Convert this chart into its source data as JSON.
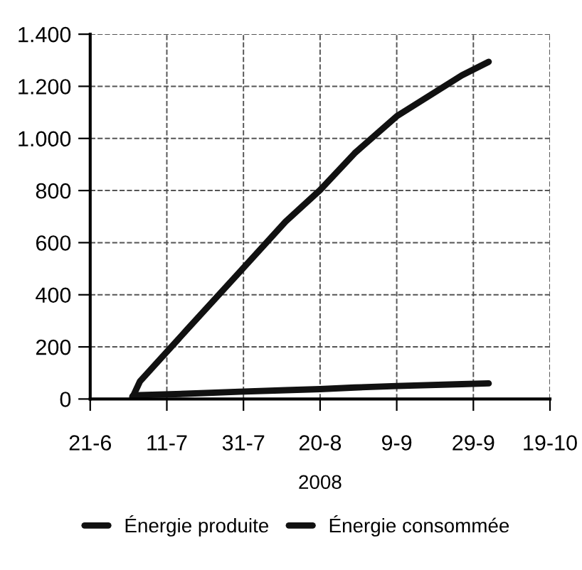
{
  "chart_data": {
    "type": "line",
    "xlabel": "2008",
    "x": [
      "2008-07-02",
      "2008-07-04",
      "2008-07-16",
      "2008-07-30",
      "2008-08-11",
      "2008-08-20",
      "2008-08-29",
      "2008-09-09",
      "2008-09-26",
      "2008-10-03"
    ],
    "series": [
      {
        "name": "Énergie produite",
        "color": "#111111",
        "values": [
          5,
          68,
          262,
          487,
          681,
          802,
          943,
          1085,
          1242,
          1294
        ]
      },
      {
        "name": "Énergie consommée",
        "color": "#111111",
        "values": [
          10,
          15,
          20,
          28,
          34,
          38,
          44,
          50,
          57,
          60
        ]
      }
    ],
    "xlim": [
      "2008-06-21",
      "2008-10-19"
    ],
    "xticks": [
      {
        "value": "2008-06-21",
        "label": "21-6"
      },
      {
        "value": "2008-07-11",
        "label": "11-7"
      },
      {
        "value": "2008-07-31",
        "label": "31-7"
      },
      {
        "value": "2008-08-20",
        "label": "20-8"
      },
      {
        "value": "2008-09-09",
        "label": "9-9"
      },
      {
        "value": "2008-09-29",
        "label": "29-9"
      },
      {
        "value": "2008-10-19",
        "label": "19-10"
      }
    ],
    "ylim": [
      0,
      1400
    ],
    "yticks": [
      0,
      200,
      400,
      600,
      800,
      {
        "value": 1000,
        "label": "1.000"
      },
      {
        "value": 1200,
        "label": "1.200"
      },
      {
        "value": 1400,
        "label": "1.400"
      }
    ],
    "grid": true,
    "legend": "bottom",
    "line_style": "solid",
    "marker": "none"
  }
}
